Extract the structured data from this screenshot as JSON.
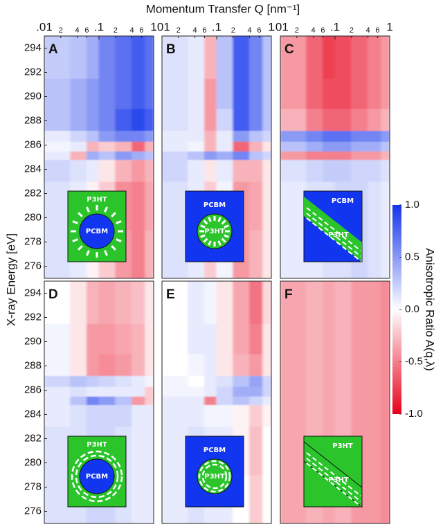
{
  "figure": {
    "title": "Momentum Transfer Q [nm⁻¹]",
    "y_label": "X-ray Energy [eV]",
    "colorbar": {
      "label": "Anisotropic Ratio A(q,λ)",
      "zlim": [
        -1,
        1
      ],
      "colors": [
        "#e8001a",
        "#ffffff",
        "#1434eb"
      ],
      "ticks": [
        {
          "value": 1,
          "label": "1.0"
        },
        {
          "value": 0.5,
          "label": "0.5"
        },
        {
          "value": 0,
          "label": "0.0"
        },
        {
          "value": -0.5,
          "label": "-0.5"
        },
        {
          "value": -1,
          "label": "-1.0"
        }
      ]
    }
  },
  "chart_data": [
    {
      "type": "heatmap",
      "label": "A",
      "log_x": true,
      "xlim": [
        0.01,
        1
      ],
      "ylim": [
        275,
        295
      ],
      "xticks": [
        {
          "value": 0.01,
          "label": ".01"
        },
        {
          "value": 0.02,
          "label": "2"
        },
        {
          "value": 0.04,
          "label": "4"
        },
        {
          "value": 0.06,
          "label": "6"
        },
        {
          "value": 0.1,
          "label": ".1"
        },
        {
          "value": 0.2,
          "label": "2"
        },
        {
          "value": 0.4,
          "label": "4"
        },
        {
          "value": 0.6,
          "label": "6"
        },
        1
      ],
      "yticks": [
        276,
        278,
        280,
        282,
        284,
        286,
        288,
        290,
        292,
        294
      ],
      "x_bins": [
        0.01,
        0.03,
        0.06,
        0.1,
        0.2,
        0.4,
        0.7,
        1
      ],
      "y_bins": [
        275,
        279,
        283,
        284.8,
        285.5,
        286.3,
        287.2,
        289,
        291.5,
        295
      ],
      "z": [
        [
          0.15,
          0.1,
          -0.05,
          -0.2,
          -0.4,
          -0.5,
          -0.3
        ],
        [
          0.15,
          0.1,
          -0.05,
          -0.2,
          -0.45,
          -0.5,
          -0.35
        ],
        [
          0.2,
          0.15,
          0.1,
          -0.1,
          -0.3,
          -0.4,
          -0.3
        ],
        [
          0.1,
          -0.3,
          0.4,
          0.3,
          0.5,
          0.4,
          0.3
        ],
        [
          0.05,
          0.1,
          -0.3,
          -0.2,
          -0.3,
          -0.6,
          -0.3
        ],
        [
          0.1,
          0.2,
          0.3,
          0.5,
          0.6,
          0.6,
          0.5
        ],
        [
          0.3,
          0.4,
          0.5,
          0.6,
          0.8,
          0.9,
          0.8
        ],
        [
          0.3,
          0.4,
          0.5,
          0.6,
          0.7,
          0.8,
          0.7
        ],
        [
          0.25,
          0.3,
          0.4,
          0.6,
          0.7,
          0.8,
          0.7
        ]
      ],
      "inset": {
        "outer": "P3HT",
        "inner": "PCBM"
      }
    },
    {
      "type": "heatmap",
      "label": "B",
      "log_x": true,
      "xlim": [
        0.01,
        1
      ],
      "ylim": [
        275,
        295
      ],
      "xticks": [
        {
          "value": 0.01,
          "label": ".01"
        },
        {
          "value": 0.02,
          "label": "2"
        },
        {
          "value": 0.04,
          "label": "4"
        },
        {
          "value": 0.06,
          "label": "6"
        },
        {
          "value": 0.1,
          "label": ".1"
        },
        {
          "value": 0.2,
          "label": "2"
        },
        {
          "value": 0.4,
          "label": "4"
        },
        {
          "value": 0.6,
          "label": "6"
        },
        1
      ],
      "x_bins": [
        0.01,
        0.03,
        0.06,
        0.1,
        0.2,
        0.4,
        0.7,
        1
      ],
      "y_bins": [
        275,
        279,
        283,
        284.8,
        285.5,
        286.3,
        287.2,
        289,
        291.5,
        295
      ],
      "z": [
        [
          0.15,
          0.1,
          -0.2,
          0.05,
          -0.4,
          -0.3,
          -0.1
        ],
        [
          0.15,
          0.1,
          -0.2,
          0.05,
          -0.4,
          -0.35,
          -0.1
        ],
        [
          0.2,
          0.1,
          -0.1,
          0.1,
          -0.3,
          -0.3,
          -0.1
        ],
        [
          0.2,
          0.3,
          0.5,
          0.4,
          0.6,
          0.3,
          0.2
        ],
        [
          0.1,
          0.05,
          -0.3,
          0.1,
          -0.6,
          -0.3,
          -0.1
        ],
        [
          0.1,
          0.1,
          -0.3,
          0.1,
          0.5,
          0.3,
          0.2
        ],
        [
          0.15,
          0.1,
          -0.4,
          0.2,
          0.8,
          0.6,
          0.3
        ],
        [
          0.15,
          0.1,
          -0.4,
          0.3,
          0.8,
          0.6,
          0.3
        ],
        [
          0.15,
          0.1,
          -0.3,
          0.3,
          0.8,
          0.6,
          0.3
        ]
      ],
      "inset": {
        "outer": "PCBM",
        "inner": "P3HT"
      }
    },
    {
      "type": "heatmap",
      "label": "C",
      "log_x": true,
      "xlim": [
        0.01,
        1
      ],
      "ylim": [
        275,
        295
      ],
      "xticks": [
        {
          "value": 0.01,
          "label": ".01"
        },
        {
          "value": 0.02,
          "label": "2"
        },
        {
          "value": 0.04,
          "label": "4"
        },
        {
          "value": 0.06,
          "label": "6"
        },
        {
          "value": 0.1,
          "label": ".1"
        },
        {
          "value": 0.2,
          "label": "2"
        },
        {
          "value": 0.4,
          "label": "4"
        },
        {
          "value": 0.6,
          "label": "6"
        },
        1
      ],
      "x_bins": [
        0.01,
        0.03,
        0.06,
        0.1,
        0.2,
        0.4,
        0.7,
        1
      ],
      "y_bins": [
        275,
        279,
        283,
        284.8,
        285.5,
        286.3,
        287.2,
        289,
        291.5,
        295
      ],
      "z": [
        [
          0.1,
          0.1,
          0.15,
          0.15,
          0.2,
          0.15,
          0.1
        ],
        [
          0.1,
          0.15,
          0.15,
          0.2,
          0.2,
          0.15,
          0.1
        ],
        [
          0.15,
          0.2,
          0.25,
          0.25,
          0.2,
          0.2,
          0.15
        ],
        [
          -0.4,
          -0.5,
          -0.5,
          -0.5,
          -0.4,
          -0.4,
          -0.3
        ],
        [
          0.3,
          0.4,
          0.5,
          0.5,
          0.4,
          0.4,
          0.3
        ],
        [
          0.5,
          0.6,
          0.7,
          0.7,
          0.6,
          0.6,
          0.5
        ],
        [
          -0.3,
          -0.5,
          -0.6,
          -0.6,
          -0.5,
          -0.4,
          -0.3
        ],
        [
          -0.4,
          -0.6,
          -0.7,
          -0.7,
          -0.6,
          -0.5,
          -0.4
        ],
        [
          -0.4,
          -0.6,
          -0.75,
          -0.7,
          -0.6,
          -0.5,
          -0.4
        ]
      ],
      "inset": {
        "outer": "PCBM",
        "inner": "P3HT"
      }
    },
    {
      "type": "heatmap",
      "label": "D",
      "log_x": true,
      "xlim": [
        0.01,
        1
      ],
      "ylim": [
        275,
        295
      ],
      "yticks": [
        276,
        278,
        280,
        282,
        284,
        286,
        288,
        290,
        292,
        294
      ],
      "x_bins": [
        0.01,
        0.03,
        0.06,
        0.1,
        0.2,
        0.4,
        0.7,
        1
      ],
      "y_bins": [
        275,
        279,
        283,
        284.8,
        285.5,
        286.3,
        287.2,
        289,
        291.5,
        295
      ],
      "z": [
        [
          0.15,
          0.15,
          0.2,
          0.2,
          0.15,
          0.1,
          0.1
        ],
        [
          0.15,
          0.15,
          0.2,
          0.2,
          0.15,
          0.1,
          0.1
        ],
        [
          0.1,
          0.15,
          0.2,
          0.2,
          0.2,
          0.1,
          0.1
        ],
        [
          0.1,
          0.3,
          0.6,
          0.5,
          0.3,
          -0.4,
          -0.2
        ],
        [
          0.1,
          0.15,
          0.1,
          0.1,
          0.1,
          0.1,
          -0.2
        ],
        [
          0.2,
          0.3,
          0.25,
          0.2,
          0.15,
          0.1,
          0.05
        ],
        [
          0.05,
          -0.1,
          -0.4,
          -0.45,
          -0.4,
          -0.3,
          -0.1
        ],
        [
          0.05,
          -0.1,
          -0.4,
          -0.4,
          -0.35,
          -0.3,
          -0.1
        ],
        [
          0,
          -0.1,
          -0.3,
          -0.35,
          -0.3,
          -0.25,
          -0.1
        ]
      ],
      "inset": {
        "outer": "P3HT",
        "inner": "PCBM"
      }
    },
    {
      "type": "heatmap",
      "label": "E",
      "log_x": true,
      "xlim": [
        0.01,
        1
      ],
      "ylim": [
        275,
        295
      ],
      "x_bins": [
        0.01,
        0.03,
        0.06,
        0.1,
        0.2,
        0.4,
        0.7,
        1
      ],
      "y_bins": [
        275,
        279,
        283,
        284.8,
        285.5,
        286.3,
        287.2,
        289,
        291.5,
        295
      ],
      "z": [
        [
          0.1,
          0.15,
          0.1,
          0.1,
          0,
          -0.2,
          0
        ],
        [
          0.1,
          0.15,
          0.1,
          0.1,
          -0.05,
          -0.25,
          0
        ],
        [
          0.1,
          0.1,
          0.05,
          0.05,
          -0.05,
          -0.2,
          -0.05
        ],
        [
          0.1,
          0.1,
          -0.5,
          0.2,
          0.3,
          0.2,
          0.1
        ],
        [
          0.05,
          0.05,
          0.1,
          0.2,
          0.4,
          0.4,
          0.2
        ],
        [
          0.05,
          0,
          0.1,
          0.15,
          0.3,
          0.45,
          0.2
        ],
        [
          0,
          0.05,
          0.1,
          -0.1,
          -0.3,
          -0.4,
          -0.1
        ],
        [
          0,
          0.1,
          0.1,
          -0.1,
          -0.35,
          -0.5,
          -0.1
        ],
        [
          0,
          0.1,
          0.05,
          -0.1,
          -0.35,
          -0.55,
          -0.15
        ]
      ],
      "inset": {
        "outer": "PCBM",
        "inner": "P3HT"
      }
    },
    {
      "type": "heatmap",
      "label": "F",
      "log_x": true,
      "xlim": [
        0.01,
        1
      ],
      "ylim": [
        275,
        295
      ],
      "x_bins": [
        0.01,
        0.03,
        0.06,
        0.1,
        0.2,
        0.4,
        0.7,
        1
      ],
      "y_bins": [
        275,
        279,
        283,
        284.8,
        285.5,
        286.3,
        287.2,
        289,
        291.5,
        295
      ],
      "z": [
        [
          -0.35,
          -0.3,
          -0.35,
          -0.3,
          -0.4,
          -0.4,
          -0.45
        ],
        [
          -0.35,
          -0.3,
          -0.35,
          -0.3,
          -0.4,
          -0.4,
          -0.45
        ],
        [
          -0.35,
          -0.3,
          -0.35,
          -0.3,
          -0.4,
          -0.4,
          -0.45
        ],
        [
          -0.35,
          -0.3,
          -0.35,
          -0.3,
          -0.4,
          -0.4,
          -0.45
        ],
        [
          -0.35,
          -0.3,
          -0.35,
          -0.3,
          -0.4,
          -0.4,
          -0.45
        ],
        [
          -0.35,
          -0.3,
          -0.35,
          -0.3,
          -0.4,
          -0.4,
          -0.45
        ],
        [
          -0.35,
          -0.3,
          -0.35,
          -0.3,
          -0.4,
          -0.4,
          -0.45
        ],
        [
          -0.35,
          -0.3,
          -0.35,
          -0.3,
          -0.4,
          -0.4,
          -0.45
        ],
        [
          -0.35,
          -0.3,
          -0.35,
          -0.3,
          -0.4,
          -0.4,
          -0.45
        ]
      ],
      "inset": {
        "outer": "P3HT",
        "inner": "P3HT"
      }
    }
  ]
}
